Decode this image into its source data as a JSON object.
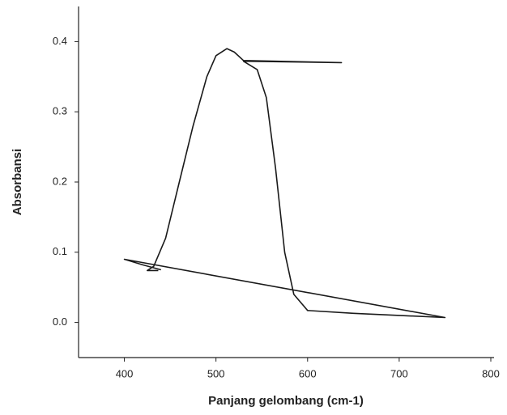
{
  "chart_data": {
    "type": "line",
    "x_label": "Panjang gelombang (cm-1)",
    "y_label": "Absorbansi",
    "xlim": [
      350,
      800
    ],
    "xticks": [
      400,
      500,
      600,
      700,
      800
    ],
    "ylim": [
      -0.05,
      0.45
    ],
    "yticks": [
      {
        "value": 0,
        "label": "0.0"
      },
      0.1,
      0.2,
      0.3,
      0.4
    ],
    "grid": false,
    "series": [
      {
        "color": "#1a1a1a",
        "x": [
          437,
          425,
          432,
          445,
          460,
          475,
          490,
          500,
          512,
          520,
          530,
          637,
          530,
          545,
          555,
          565,
          575,
          585,
          600,
          650,
          700,
          750,
          400,
          420,
          440
        ],
        "values": [
          0.074,
          0.074,
          0.08,
          0.12,
          0.2,
          0.28,
          0.35,
          0.38,
          0.39,
          0.385,
          0.373,
          0.37,
          0.372,
          0.36,
          0.32,
          0.22,
          0.1,
          0.04,
          0.017,
          0.013,
          0.01,
          0.007,
          0.09,
          0.082,
          0.075
        ]
      }
    ]
  }
}
